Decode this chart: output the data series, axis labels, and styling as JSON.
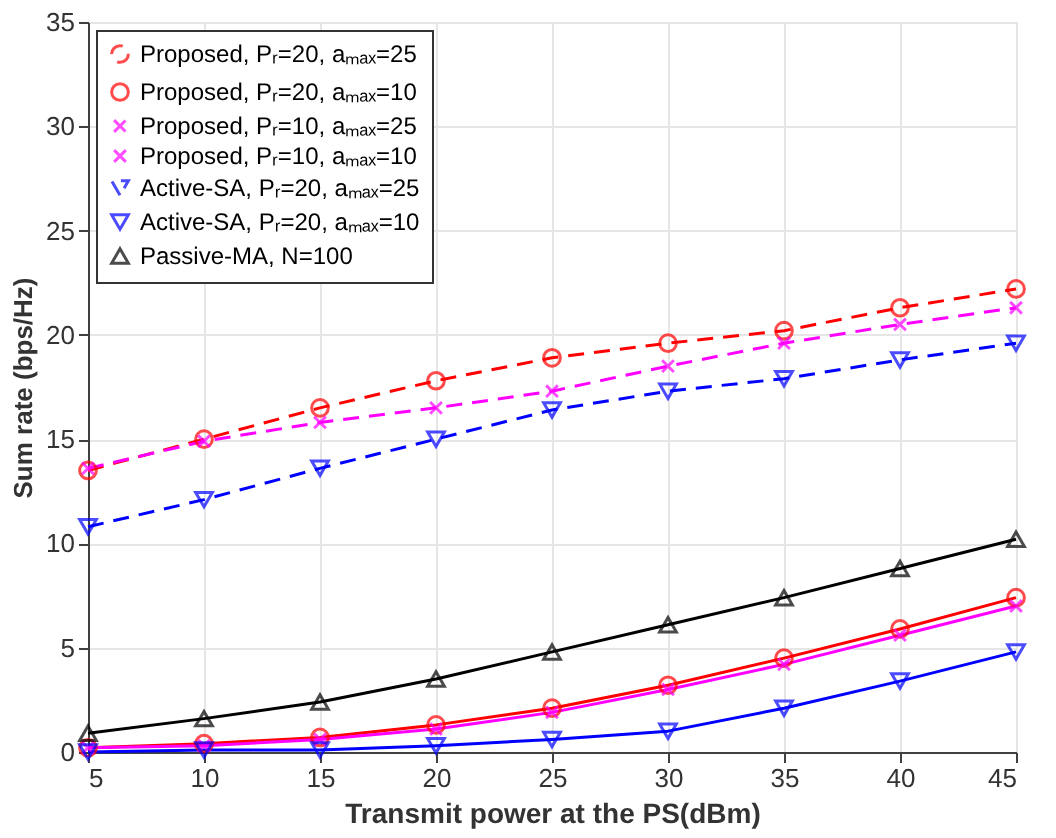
{
  "chart_data": {
    "type": "line",
    "xlabel": "Transmit power at the PS(dBm)",
    "ylabel": "Sum rate (bps/Hz)",
    "x": [
      5,
      10,
      15,
      20,
      25,
      30,
      35,
      40,
      45
    ],
    "xlim": [
      5,
      45
    ],
    "xticks": [
      5,
      10,
      15,
      20,
      25,
      30,
      35,
      40,
      45
    ],
    "ylim": [
      0,
      35
    ],
    "yticks": [
      0,
      5,
      10,
      15,
      20,
      25,
      30,
      35
    ],
    "grid": true,
    "legend": "top left",
    "series": [
      {
        "name": "Proposed, Pᵣ=20, aₘₐₓ=25",
        "color": "#ff0000",
        "line_style": "dashed",
        "marker": "circle",
        "values": [
          13.5,
          15.0,
          16.5,
          17.8,
          18.9,
          19.6,
          20.2,
          21.3,
          22.2
        ]
      },
      {
        "name": "Proposed, Pᵣ=20, aₘₐₓ=10",
        "color": "#ff0000",
        "line_style": "solid",
        "marker": "circle",
        "values": [
          0.2,
          0.4,
          0.7,
          1.3,
          2.1,
          3.2,
          4.5,
          5.9,
          7.4
        ]
      },
      {
        "name": "Proposed, Pᵣ=10, aₘₐₓ=25",
        "color": "#ff00ff",
        "line_style": "dashed",
        "marker": "cross",
        "values": [
          13.6,
          14.9,
          15.8,
          16.5,
          17.3,
          18.5,
          19.6,
          20.5,
          21.3
        ]
      },
      {
        "name": "Proposed, Pᵣ=10, aₘₐₓ=10",
        "color": "#ff00ff",
        "line_style": "solid",
        "marker": "cross",
        "values": [
          0.2,
          0.3,
          0.6,
          1.1,
          1.9,
          3.0,
          4.2,
          5.6,
          7.0
        ]
      },
      {
        "name": "Active-SA, Pᵣ=20, aₘₐₓ=25",
        "color": "#0000ff",
        "line_style": "dashed",
        "marker": "triangle-down",
        "values": [
          10.8,
          12.1,
          13.6,
          15.0,
          16.4,
          17.3,
          17.9,
          18.8,
          19.6
        ]
      },
      {
        "name": "Active-SA, Pᵣ=20, aₘₐₓ=10",
        "color": "#0000ff",
        "line_style": "solid",
        "marker": "triangle-down",
        "values": [
          0.0,
          0.1,
          0.1,
          0.3,
          0.6,
          1.0,
          2.1,
          3.4,
          4.8
        ]
      },
      {
        "name": "Passive-MA, N=100",
        "color": "#000000",
        "line_style": "solid",
        "marker": "triangle",
        "values": [
          0.9,
          1.6,
          2.4,
          3.5,
          4.8,
          6.1,
          7.4,
          8.8,
          10.2
        ]
      }
    ]
  }
}
